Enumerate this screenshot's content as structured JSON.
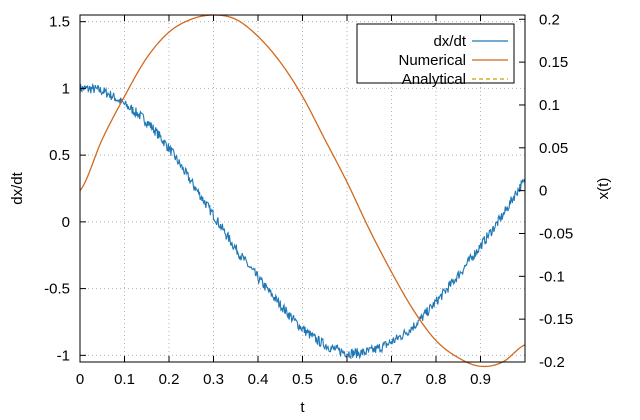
{
  "chart_data": {
    "type": "line",
    "title": "",
    "xlabel": "t",
    "ylabel": "dx/dt",
    "y2label": "x(t)",
    "xlim": [
      0,
      1
    ],
    "ylim": [
      -1.05,
      1.55
    ],
    "y2lim": [
      -0.2,
      0.205
    ],
    "xticks": [
      0,
      0.1,
      0.2,
      0.3,
      0.4,
      0.5,
      0.6,
      0.7,
      0.8,
      0.9
    ],
    "xtick_labels": [
      "0",
      "0.1",
      "0.2",
      "0.3",
      "0.4",
      "0.5",
      "0.6",
      "0.7",
      "0.8",
      "0.9"
    ],
    "yticks": [
      -1,
      -0.5,
      0,
      0.5,
      1,
      1.5
    ],
    "ytick_labels": [
      "-1",
      "-0.5",
      "0",
      "0.5",
      "1",
      "1.5"
    ],
    "y2ticks": [
      -0.2,
      -0.15,
      -0.1,
      -0.05,
      0,
      0.05,
      0.1,
      0.15,
      0.2
    ],
    "y2tick_labels": [
      "-0.2",
      "-0.15",
      "-0.1",
      "-0.05",
      "0",
      "0.05",
      "0.1",
      "0.15",
      "0.2"
    ],
    "grid": true,
    "legend_position": "top-right",
    "series": [
      {
        "name": "dx/dt",
        "axis": "left",
        "color": "#1f77b4",
        "style": "solid",
        "noisy": true,
        "x": [
          0,
          0.05,
          0.1,
          0.15,
          0.2,
          0.25,
          0.3,
          0.35,
          0.4,
          0.45,
          0.5,
          0.55,
          0.6,
          0.65,
          0.7,
          0.75,
          0.8,
          0.85,
          0.9,
          0.95,
          1.0
        ],
        "y": [
          1.0,
          0.98,
          0.88,
          0.75,
          0.55,
          0.3,
          0.05,
          -0.2,
          -0.42,
          -0.62,
          -0.8,
          -0.92,
          -0.98,
          -0.97,
          -0.9,
          -0.78,
          -0.6,
          -0.4,
          -0.18,
          0.05,
          0.3
        ]
      },
      {
        "name": "Numerical",
        "axis": "right",
        "color": "#d2691e",
        "style": "solid",
        "x": [
          0,
          0.05,
          0.1,
          0.15,
          0.2,
          0.25,
          0.3,
          0.35,
          0.4,
          0.45,
          0.5,
          0.55,
          0.6,
          0.65,
          0.7,
          0.75,
          0.8,
          0.85,
          0.9,
          0.95,
          1.0
        ],
        "y": [
          0.0,
          0.06,
          0.11,
          0.155,
          0.185,
          0.2,
          0.205,
          0.2,
          0.18,
          0.15,
          0.11,
          0.06,
          0.01,
          -0.045,
          -0.095,
          -0.14,
          -0.175,
          -0.195,
          -0.205,
          -0.2,
          -0.18
        ]
      },
      {
        "name": "Analytical",
        "axis": "right",
        "color": "#c8a000",
        "style": "dashed",
        "x": [],
        "y": []
      }
    ]
  }
}
